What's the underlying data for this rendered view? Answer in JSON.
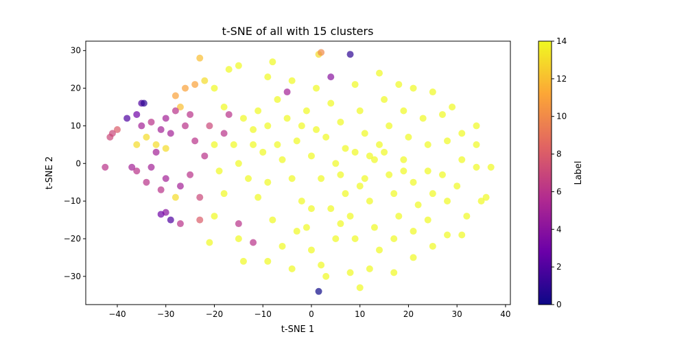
{
  "chart_data": {
    "type": "scatter",
    "title": "t-SNE of all with 15 clusters",
    "xlabel": "t-SNE 1",
    "ylabel": "t-SNE 2",
    "xlim": [
      -46.5,
      41
    ],
    "ylim": [
      -37.5,
      32.5
    ],
    "xticks": [
      -40,
      -30,
      -20,
      -10,
      0,
      10,
      20,
      30,
      40
    ],
    "yticks": [
      -30,
      -20,
      -10,
      0,
      10,
      20,
      30
    ],
    "grid": false,
    "colorbar": {
      "label": "Label",
      "colormap": "plasma",
      "range": [
        0,
        14
      ],
      "ticks": [
        0,
        2,
        4,
        6,
        8,
        10,
        12,
        14
      ],
      "stops": [
        "#0d0887",
        "#6a00a8",
        "#b12a90",
        "#e16462",
        "#fca636",
        "#f0f921"
      ]
    },
    "points": [
      {
        "x": -23,
        "y": 28,
        "label": 12
      },
      {
        "x": -24,
        "y": 21,
        "label": 11
      },
      {
        "x": -26,
        "y": 20,
        "label": 11
      },
      {
        "x": -27,
        "y": 15,
        "label": 12
      },
      {
        "x": -28,
        "y": 18,
        "label": 11
      },
      {
        "x": 2,
        "y": 29.5,
        "label": 10
      },
      {
        "x": 1.5,
        "y": 29,
        "label": 13
      },
      {
        "x": 8,
        "y": 29,
        "label": 1
      },
      {
        "x": 1.5,
        "y": -34,
        "label": 0
      },
      {
        "x": -34.5,
        "y": 16,
        "label": 1
      },
      {
        "x": -35,
        "y": 16,
        "label": 2
      },
      {
        "x": -36,
        "y": 13,
        "label": 3
      },
      {
        "x": -38,
        "y": 12,
        "label": 2
      },
      {
        "x": -42.5,
        "y": -1,
        "label": 6
      },
      {
        "x": -41,
        "y": 8,
        "label": 7
      },
      {
        "x": -40,
        "y": 9,
        "label": 8
      },
      {
        "x": -41.5,
        "y": 7,
        "label": 7
      },
      {
        "x": -31,
        "y": -13.5,
        "label": 3
      },
      {
        "x": -29,
        "y": -15,
        "label": 2
      },
      {
        "x": -30,
        "y": -13,
        "label": 4
      },
      {
        "x": -23,
        "y": -15,
        "label": 8
      },
      {
        "x": -27,
        "y": -16,
        "label": 6
      },
      {
        "x": -34,
        "y": -5,
        "label": 6
      },
      {
        "x": -36,
        "y": -2,
        "label": 6
      },
      {
        "x": -37,
        "y": -1,
        "label": 5
      },
      {
        "x": -33,
        "y": -1,
        "label": 5
      },
      {
        "x": -32,
        "y": 3,
        "label": 5
      },
      {
        "x": -30,
        "y": 12,
        "label": 5
      },
      {
        "x": -29,
        "y": 8,
        "label": 5
      },
      {
        "x": -28,
        "y": 14,
        "label": 6
      },
      {
        "x": -25,
        "y": 13,
        "label": 6
      },
      {
        "x": -31,
        "y": 9,
        "label": 5
      },
      {
        "x": -33,
        "y": 11,
        "label": 6
      },
      {
        "x": -35,
        "y": 10,
        "label": 5
      },
      {
        "x": -26,
        "y": 10,
        "label": 6
      },
      {
        "x": -24,
        "y": 6,
        "label": 6
      },
      {
        "x": -22,
        "y": 2,
        "label": 6
      },
      {
        "x": -25,
        "y": -3,
        "label": 6
      },
      {
        "x": -27,
        "y": -6,
        "label": 5
      },
      {
        "x": -30,
        "y": -4,
        "label": 5
      },
      {
        "x": -31,
        "y": -7,
        "label": 6
      },
      {
        "x": -23,
        "y": -9,
        "label": 7
      },
      {
        "x": -21,
        "y": 10,
        "label": 7
      },
      {
        "x": -18,
        "y": 8,
        "label": 6
      },
      {
        "x": -17,
        "y": 13,
        "label": 6
      },
      {
        "x": -15,
        "y": -16,
        "label": 6
      },
      {
        "x": -12,
        "y": -21,
        "label": 6
      },
      {
        "x": -5,
        "y": 19,
        "label": 5
      },
      {
        "x": 4,
        "y": 23,
        "label": 4
      },
      {
        "x": -36,
        "y": 5,
        "label": 13
      },
      {
        "x": -32,
        "y": 5,
        "label": 13
      },
      {
        "x": -30,
        "y": 4,
        "label": 13
      },
      {
        "x": -34,
        "y": 7,
        "label": 13
      },
      {
        "x": -28,
        "y": -9,
        "label": 13
      },
      {
        "x": -22,
        "y": 22,
        "label": 13
      },
      {
        "x": -20,
        "y": 20,
        "label": 14
      },
      {
        "x": -17,
        "y": 25,
        "label": 14
      },
      {
        "x": -15,
        "y": 26,
        "label": 14
      },
      {
        "x": -18,
        "y": 15,
        "label": 14
      },
      {
        "x": -20,
        "y": 5,
        "label": 14
      },
      {
        "x": -19,
        "y": -2,
        "label": 14
      },
      {
        "x": -18,
        "y": -8,
        "label": 14
      },
      {
        "x": -20,
        "y": -14,
        "label": 14
      },
      {
        "x": -21,
        "y": -21,
        "label": 14
      },
      {
        "x": -15,
        "y": -20,
        "label": 14
      },
      {
        "x": -14,
        "y": -26,
        "label": 14
      },
      {
        "x": -16,
        "y": 5,
        "label": 14
      },
      {
        "x": -14,
        "y": 12,
        "label": 14
      },
      {
        "x": -12,
        "y": 9,
        "label": 14
      },
      {
        "x": -11,
        "y": 14,
        "label": 14
      },
      {
        "x": -9,
        "y": 10,
        "label": 14
      },
      {
        "x": -10,
        "y": 3,
        "label": 14
      },
      {
        "x": -13,
        "y": -4,
        "label": 14
      },
      {
        "x": -11,
        "y": -9,
        "label": 14
      },
      {
        "x": -8,
        "y": -15,
        "label": 14
      },
      {
        "x": -6,
        "y": -22,
        "label": 14
      },
      {
        "x": -9,
        "y": -26,
        "label": 14
      },
      {
        "x": -4,
        "y": -28,
        "label": 14
      },
      {
        "x": -7,
        "y": 17,
        "label": 14
      },
      {
        "x": -9,
        "y": 23,
        "label": 14
      },
      {
        "x": -8,
        "y": 27,
        "label": 14
      },
      {
        "x": -4,
        "y": 22,
        "label": 14
      },
      {
        "x": -5,
        "y": 12,
        "label": 14
      },
      {
        "x": -3,
        "y": 6,
        "label": 14
      },
      {
        "x": -6,
        "y": 1,
        "label": 14
      },
      {
        "x": -4,
        "y": -4,
        "label": 14
      },
      {
        "x": -2,
        "y": -10,
        "label": 14
      },
      {
        "x": -1,
        "y": -17,
        "label": 14
      },
      {
        "x": 0,
        "y": -23,
        "label": 14
      },
      {
        "x": 2,
        "y": -27,
        "label": 14
      },
      {
        "x": -1,
        "y": 14,
        "label": 14
      },
      {
        "x": 1,
        "y": 9,
        "label": 14
      },
      {
        "x": 3,
        "y": 7,
        "label": 14
      },
      {
        "x": 0,
        "y": 2,
        "label": 14
      },
      {
        "x": 2,
        "y": -4,
        "label": 14
      },
      {
        "x": 4,
        "y": -12,
        "label": 14
      },
      {
        "x": 5,
        "y": -20,
        "label": 14
      },
      {
        "x": 3,
        "y": -30,
        "label": 14
      },
      {
        "x": 1,
        "y": 20,
        "label": 14
      },
      {
        "x": 4,
        "y": 16,
        "label": 14
      },
      {
        "x": 6,
        "y": 11,
        "label": 14
      },
      {
        "x": 7,
        "y": 4,
        "label": 14
      },
      {
        "x": 6,
        "y": -3,
        "label": 14
      },
      {
        "x": 7,
        "y": -8,
        "label": 14
      },
      {
        "x": 8,
        "y": -14,
        "label": 14
      },
      {
        "x": 9,
        "y": -20,
        "label": 14
      },
      {
        "x": 8,
        "y": -29,
        "label": 14
      },
      {
        "x": 10,
        "y": -33,
        "label": 14
      },
      {
        "x": 9,
        "y": 21,
        "label": 14
      },
      {
        "x": 10,
        "y": 14,
        "label": 14
      },
      {
        "x": 11,
        "y": 8,
        "label": 14
      },
      {
        "x": 12,
        "y": 2,
        "label": 14
      },
      {
        "x": 11,
        "y": -4,
        "label": 14
      },
      {
        "x": 12,
        "y": -10,
        "label": 14
      },
      {
        "x": 13,
        "y": -17,
        "label": 14
      },
      {
        "x": 14,
        "y": -23,
        "label": 14
      },
      {
        "x": 12,
        "y": -28,
        "label": 14
      },
      {
        "x": 14,
        "y": 24,
        "label": 14
      },
      {
        "x": 15,
        "y": 17,
        "label": 14
      },
      {
        "x": 16,
        "y": 10,
        "label": 14
      },
      {
        "x": 15,
        "y": 3,
        "label": 14
      },
      {
        "x": 16,
        "y": -3,
        "label": 14
      },
      {
        "x": 17,
        "y": -8,
        "label": 14
      },
      {
        "x": 18,
        "y": -14,
        "label": 14
      },
      {
        "x": 17,
        "y": -20,
        "label": 14
      },
      {
        "x": 17,
        "y": -29,
        "label": 14
      },
      {
        "x": 18,
        "y": 21,
        "label": 14
      },
      {
        "x": 19,
        "y": 14,
        "label": 14
      },
      {
        "x": 20,
        "y": 7,
        "label": 14
      },
      {
        "x": 19,
        "y": 1,
        "label": 14
      },
      {
        "x": 21,
        "y": -5,
        "label": 14
      },
      {
        "x": 22,
        "y": -11,
        "label": 14
      },
      {
        "x": 21,
        "y": -18,
        "label": 14
      },
      {
        "x": 21,
        "y": -25,
        "label": 14
      },
      {
        "x": 21,
        "y": 20,
        "label": 14
      },
      {
        "x": 23,
        "y": 12,
        "label": 14
      },
      {
        "x": 24,
        "y": 5,
        "label": 14
      },
      {
        "x": 24,
        "y": -2,
        "label": 14
      },
      {
        "x": 25,
        "y": -8,
        "label": 14
      },
      {
        "x": 24,
        "y": -15,
        "label": 14
      },
      {
        "x": 25,
        "y": -22,
        "label": 14
      },
      {
        "x": 25,
        "y": 19,
        "label": 14
      },
      {
        "x": 27,
        "y": 13,
        "label": 14
      },
      {
        "x": 28,
        "y": 6,
        "label": 14
      },
      {
        "x": 27,
        "y": -3,
        "label": 14
      },
      {
        "x": 28,
        "y": -10,
        "label": 14
      },
      {
        "x": 28,
        "y": -19,
        "label": 14
      },
      {
        "x": 29,
        "y": 15,
        "label": 14
      },
      {
        "x": 31,
        "y": 8,
        "label": 14
      },
      {
        "x": 31,
        "y": 1,
        "label": 14
      },
      {
        "x": 30,
        "y": -6,
        "label": 14
      },
      {
        "x": 32,
        "y": -14,
        "label": 14
      },
      {
        "x": 31,
        "y": -19,
        "label": 14
      },
      {
        "x": 34,
        "y": 10,
        "label": 14
      },
      {
        "x": 34,
        "y": 5,
        "label": 14
      },
      {
        "x": 34,
        "y": -1,
        "label": 14
      },
      {
        "x": 35,
        "y": -10,
        "label": 14
      },
      {
        "x": 37,
        "y": -1,
        "label": 14
      },
      {
        "x": 36,
        "y": -9,
        "label": 14
      },
      {
        "x": 13,
        "y": 1,
        "label": 14
      },
      {
        "x": 14,
        "y": 5,
        "label": 14
      },
      {
        "x": 10,
        "y": -6,
        "label": 14
      },
      {
        "x": 5,
        "y": 0,
        "label": 14
      },
      {
        "x": -2,
        "y": 10,
        "label": 14
      },
      {
        "x": -7,
        "y": 5,
        "label": 14
      },
      {
        "x": -12,
        "y": 5,
        "label": 14
      },
      {
        "x": -15,
        "y": 0,
        "label": 14
      },
      {
        "x": -9,
        "y": -5,
        "label": 14
      },
      {
        "x": 0,
        "y": -12,
        "label": 14
      },
      {
        "x": 6,
        "y": -16,
        "label": 14
      },
      {
        "x": 19,
        "y": -2,
        "label": 14
      },
      {
        "x": 9,
        "y": 3,
        "label": 14
      },
      {
        "x": -3,
        "y": -18,
        "label": 14
      }
    ]
  }
}
